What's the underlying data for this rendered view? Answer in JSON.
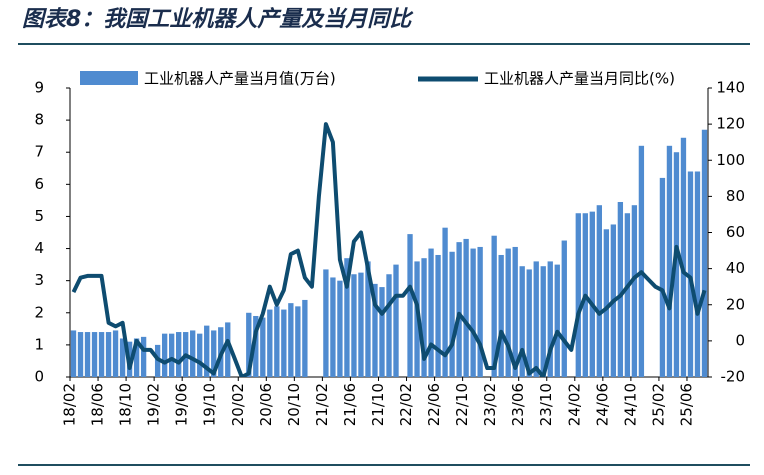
{
  "chart_data": {
    "type": "bar-line",
    "title": "图表8：我国工业机器人产量及当月同比",
    "categories": [
      "18/02",
      null,
      null,
      null,
      "18/06",
      null,
      null,
      null,
      "18/10",
      null,
      null,
      null,
      "19/02",
      null,
      null,
      null,
      "19/06",
      null,
      null,
      null,
      "19/10",
      null,
      null,
      null,
      "20/02",
      null,
      null,
      null,
      "20/06",
      null,
      null,
      null,
      "20/10",
      null,
      null,
      null,
      "21/02",
      null,
      null,
      null,
      "21/06",
      null,
      null,
      null,
      "21/10",
      null,
      null,
      null,
      "22/02",
      null,
      null,
      null,
      "22/06",
      null,
      null,
      null,
      "22/10",
      null,
      null,
      null,
      "23/02",
      null,
      null,
      null,
      "23/06",
      null,
      null,
      null,
      "23/10",
      null,
      null,
      null,
      "24/02",
      null,
      null,
      null,
      "24/06",
      null,
      null,
      null,
      "24/10",
      null,
      null,
      null,
      "25/02",
      null,
      null,
      null,
      "25/06",
      null,
      null
    ],
    "series": [
      {
        "name": "工业机器人产量当月值(万台)",
        "color": "#4f8bd0",
        "type": "bar",
        "values": [
          1.45,
          1.4,
          1.4,
          1.4,
          1.4,
          1.4,
          1.45,
          1.2,
          1.1,
          1.2,
          1.25,
          null,
          1.0,
          1.35,
          1.35,
          1.4,
          1.4,
          1.45,
          1.35,
          1.6,
          1.45,
          1.55,
          1.7,
          null,
          null,
          2.0,
          1.9,
          1.85,
          2.1,
          2.2,
          2.1,
          2.3,
          2.2,
          2.4,
          null,
          null,
          3.35,
          3.1,
          3.0,
          3.7,
          3.2,
          3.25,
          3.6,
          2.9,
          2.8,
          3.2,
          3.5,
          null,
          4.45,
          3.6,
          3.7,
          4.0,
          3.8,
          4.65,
          3.9,
          4.2,
          4.3,
          4.0,
          4.05,
          null,
          4.4,
          3.8,
          4.0,
          4.05,
          3.45,
          3.35,
          3.6,
          3.45,
          3.6,
          3.5,
          4.25,
          null,
          5.1,
          5.1,
          5.15,
          5.35,
          4.6,
          4.75,
          5.45,
          5.1,
          5.35,
          7.2,
          null,
          null,
          6.2,
          7.2,
          7.0,
          7.45,
          6.4,
          6.4,
          7.7
        ]
      },
      {
        "name": "工业机器人产量当月同比(%)",
        "color": "#0e4c70",
        "type": "line",
        "axis": "y2",
        "values": [
          27,
          35,
          36,
          36,
          36,
          10,
          8,
          10,
          -15,
          0,
          -5,
          -5,
          -10,
          -12,
          -10,
          -12,
          -8,
          -10,
          -12,
          -15,
          -18,
          -8,
          0,
          -10,
          -20,
          -18,
          5,
          15,
          30,
          20,
          28,
          48,
          50,
          35,
          30,
          80,
          120,
          110,
          45,
          30,
          55,
          60,
          40,
          20,
          15,
          20,
          25,
          25,
          30,
          20,
          -10,
          -2,
          -5,
          -8,
          -2,
          15,
          10,
          5,
          -2,
          -15,
          -15,
          5,
          -3,
          -15,
          -5,
          -18,
          -15,
          -20,
          -5,
          5,
          0,
          -5,
          15,
          25,
          20,
          15,
          18,
          22,
          25,
          30,
          35,
          38,
          34,
          30,
          28,
          18,
          52,
          38,
          35,
          15,
          28
        ]
      }
    ],
    "ylim": [
      0,
      9
    ],
    "yticks": [
      0,
      1,
      2,
      3,
      4,
      5,
      6,
      7,
      8,
      9
    ],
    "y2lim": [
      -20,
      140
    ],
    "y2ticks": [
      -20,
      0,
      20,
      40,
      60,
      80,
      100,
      120,
      140
    ],
    "grid": false
  }
}
